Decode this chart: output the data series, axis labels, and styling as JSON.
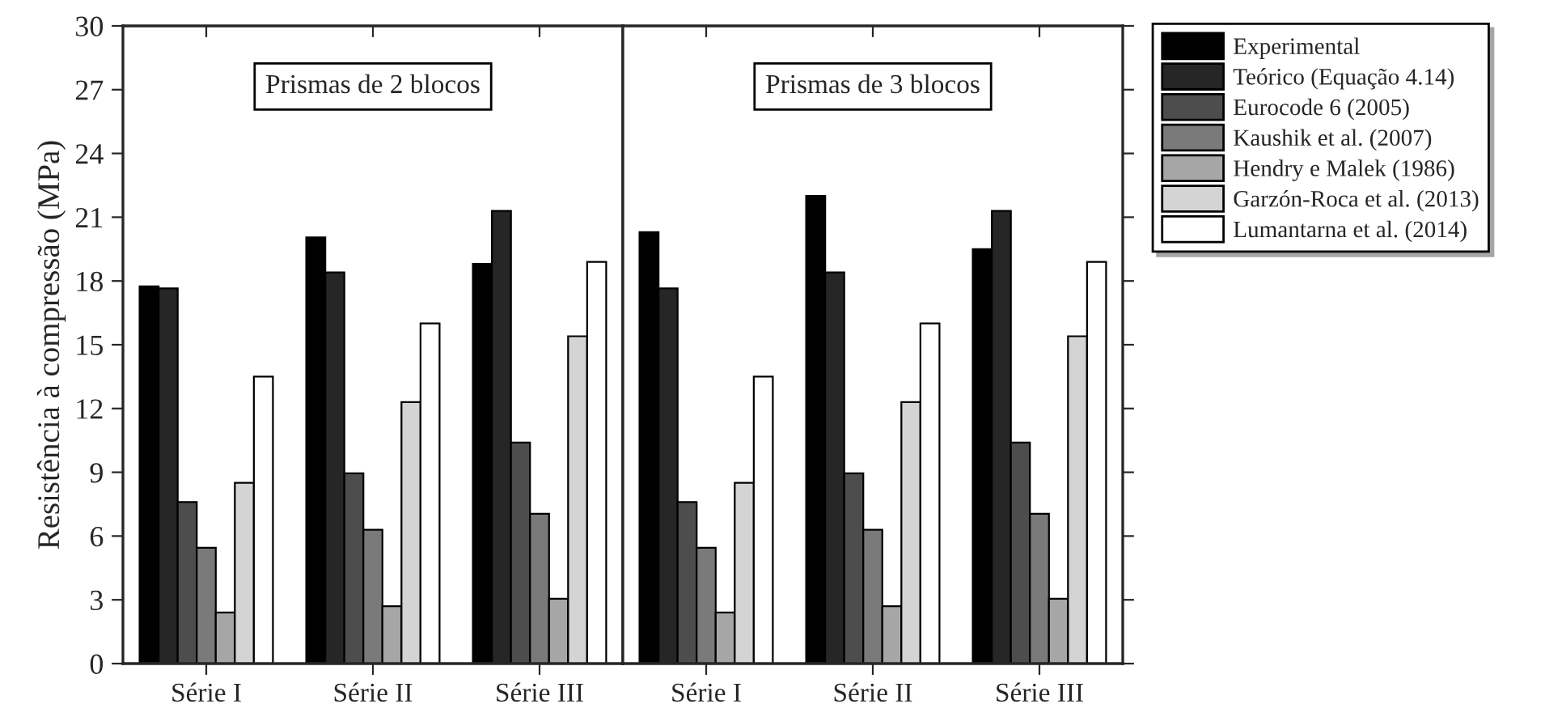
{
  "chart_data": [
    {
      "type": "bar",
      "categories": [
        "Série I",
        "Série II",
        "Série III"
      ],
      "ylabel": "Resistência à compressão (MPa)",
      "ylim": [
        0,
        30
      ],
      "yticks": [
        0,
        3,
        6,
        9,
        12,
        15,
        18,
        21,
        24,
        27,
        30
      ],
      "annotations": [
        "Prismas de 2 blocos"
      ],
      "legend": "right",
      "series": [
        {
          "name": "Experimental",
          "color": "#000000",
          "values": [
            17.75,
            20.05,
            18.8
          ]
        },
        {
          "name": "Teórico (Equação 4.14)",
          "color": "#262626",
          "values": [
            17.65,
            18.4,
            21.3
          ]
        },
        {
          "name": "Eurocode 6 (2005)",
          "color": "#4d4d4d",
          "values": [
            7.6,
            8.95,
            10.4
          ]
        },
        {
          "name": "Kaushik et al. (2007)",
          "color": "#7a7a7a",
          "values": [
            5.45,
            6.3,
            7.05
          ]
        },
        {
          "name": "Hendry e Malek (1986)",
          "color": "#a6a6a6",
          "values": [
            2.4,
            2.7,
            3.05
          ]
        },
        {
          "name": "Garzón-Roca et al. (2013)",
          "color": "#d4d4d4",
          "values": [
            8.5,
            12.3,
            15.4
          ]
        },
        {
          "name": "Lumantarna et al. (2014)",
          "color": "#ffffff",
          "values": [
            13.5,
            16.0,
            18.9
          ]
        }
      ]
    },
    {
      "type": "bar",
      "categories": [
        "Série I",
        "Série II",
        "Série III"
      ],
      "ylim": [
        0,
        30
      ],
      "tick_labels": "x",
      "annotations": [
        "Prismas de 3 blocos"
      ],
      "series": [
        {
          "color": "#000000",
          "values": [
            20.3,
            22.0,
            19.5
          ]
        },
        {
          "color": "#262626",
          "values": [
            17.65,
            18.4,
            21.3
          ]
        },
        {
          "color": "#4d4d4d",
          "values": [
            7.6,
            8.95,
            10.4
          ]
        },
        {
          "color": "#7a7a7a",
          "values": [
            5.45,
            6.3,
            7.05
          ]
        },
        {
          "color": "#a6a6a6",
          "values": [
            2.4,
            2.7,
            3.05
          ]
        },
        {
          "color": "#d4d4d4",
          "values": [
            8.5,
            12.3,
            15.4
          ]
        },
        {
          "color": "#ffffff",
          "values": [
            13.5,
            16.0,
            18.9
          ]
        }
      ]
    }
  ]
}
